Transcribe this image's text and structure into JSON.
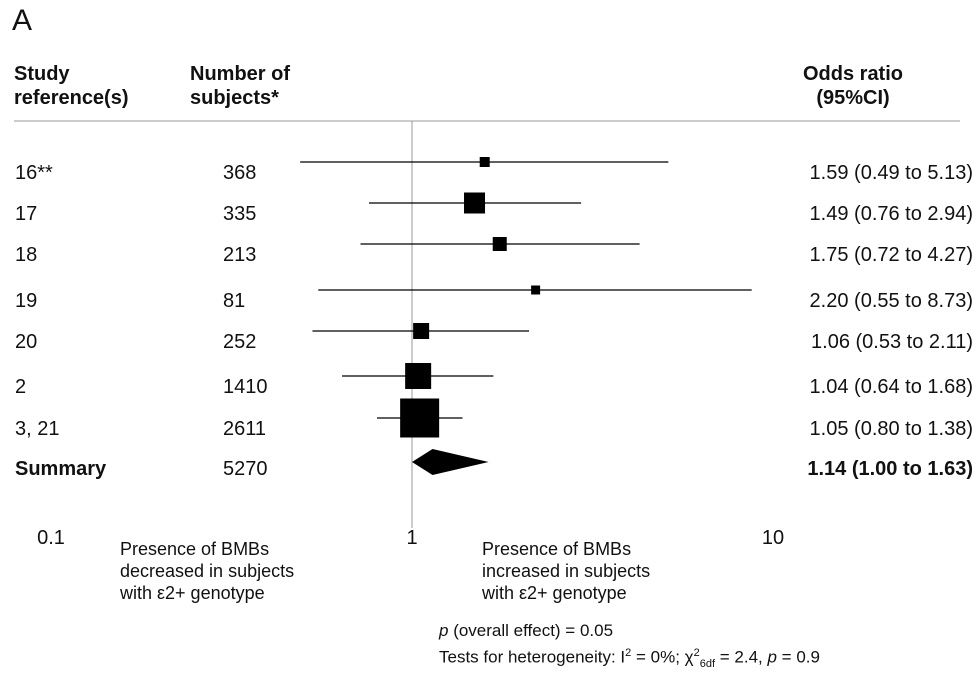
{
  "panel_label": "A",
  "headers": {
    "study_line1": "Study",
    "study_line2": "reference(s)",
    "subjects_line1": "Number of",
    "subjects_line2": "subjects*",
    "or_line1": "Odds ratio",
    "or_line2": "(95%CI)"
  },
  "notes": {
    "left_line1": "Presence of BMBs",
    "left_line2": "decreased in subjects",
    "left_line3": "with ε2+ genotype",
    "right_line1": "Presence of BMBs",
    "right_line2": "increased in subjects",
    "right_line3": "with ε2+ genotype"
  },
  "stats": {
    "p_symbol": "p",
    "overall_effect": " (overall effect) = 0.05",
    "het_prefix": "Tests for heterogeneity: I",
    "het_i2_sup": "2",
    "het_mid": " = 0%; χ",
    "het_chi_sup": "2",
    "het_chi_sub": "6df",
    "het_chi_val": " = 2.4, ",
    "het_p_symbol": "p",
    "het_p_val": " = 0.9"
  },
  "chart_data": {
    "type": "forest",
    "x_scale": "log",
    "xlim": [
      0.1,
      10
    ],
    "xticks": [
      "0.1",
      "1",
      "10"
    ],
    "reference_line": 1,
    "studies": [
      {
        "ref": "16**",
        "n": "368",
        "or": 1.59,
        "lo": 0.49,
        "hi": 5.13,
        "or_text": "1.59 (0.49 to 5.13)",
        "weight": 0.6
      },
      {
        "ref": "17",
        "n": "335",
        "or": 1.49,
        "lo": 0.76,
        "hi": 2.94,
        "or_text": "1.49 (0.76 to 2.94)",
        "weight": 1.7
      },
      {
        "ref": "18",
        "n": "213",
        "or": 1.75,
        "lo": 0.72,
        "hi": 4.27,
        "or_text": "1.75 (0.72 to 4.27)",
        "weight": 1.0
      },
      {
        "ref": "19",
        "n": "81",
        "or": 2.2,
        "lo": 0.55,
        "hi": 8.73,
        "or_text": "2.20 (0.55 to 8.73)",
        "weight": 0.5
      },
      {
        "ref": "20",
        "n": "252",
        "or": 1.06,
        "lo": 0.53,
        "hi": 2.11,
        "or_text": "1.06 (0.53 to 2.11)",
        "weight": 1.2
      },
      {
        "ref": "2",
        "n": "1410",
        "or": 1.04,
        "lo": 0.64,
        "hi": 1.68,
        "or_text": "1.04 (0.64 to 1.68)",
        "weight": 2.2
      },
      {
        "ref": "3, 21",
        "n": "2611",
        "or": 1.05,
        "lo": 0.8,
        "hi": 1.38,
        "or_text": "1.05 (0.80 to 1.38)",
        "weight": 3.5
      }
    ],
    "summary": {
      "ref": "Summary",
      "n": "5270",
      "or": 1.14,
      "lo": 1.0,
      "hi": 1.63,
      "or_text": "1.14 (1.00 to 1.63)"
    }
  }
}
